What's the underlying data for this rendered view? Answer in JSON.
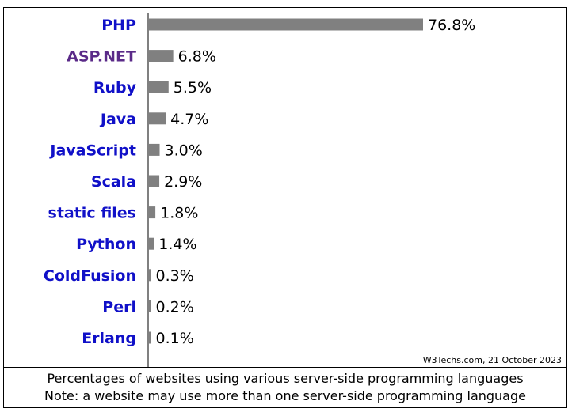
{
  "chart_data": {
    "type": "bar",
    "orientation": "horizontal",
    "categories": [
      "PHP",
      "ASP.NET",
      "Ruby",
      "Java",
      "JavaScript",
      "Scala",
      "static files",
      "Python",
      "ColdFusion",
      "Perl",
      "Erlang"
    ],
    "values": [
      76.8,
      6.8,
      5.5,
      4.7,
      3.0,
      2.9,
      1.8,
      1.4,
      0.3,
      0.2,
      0.1
    ],
    "value_labels": [
      "76.8%",
      "6.8%",
      "5.5%",
      "4.7%",
      "3.0%",
      "2.9%",
      "1.8%",
      "1.4%",
      "0.3%",
      "0.2%",
      "0.1%"
    ],
    "label_colors": [
      "#1010c8",
      "#5a2a88",
      "#1010c8",
      "#1010c8",
      "#1010c8",
      "#1010c8",
      "#1010c8",
      "#1010c8",
      "#1010c8",
      "#1010c8",
      "#1010c8"
    ],
    "bar_color": "#808080",
    "grid": false,
    "credit": "W3Techs.com, 21 October 2023"
  },
  "caption": {
    "line1": "Percentages of websites using various server-side programming languages",
    "line2": "Note: a website may use more than one server-side programming language"
  }
}
